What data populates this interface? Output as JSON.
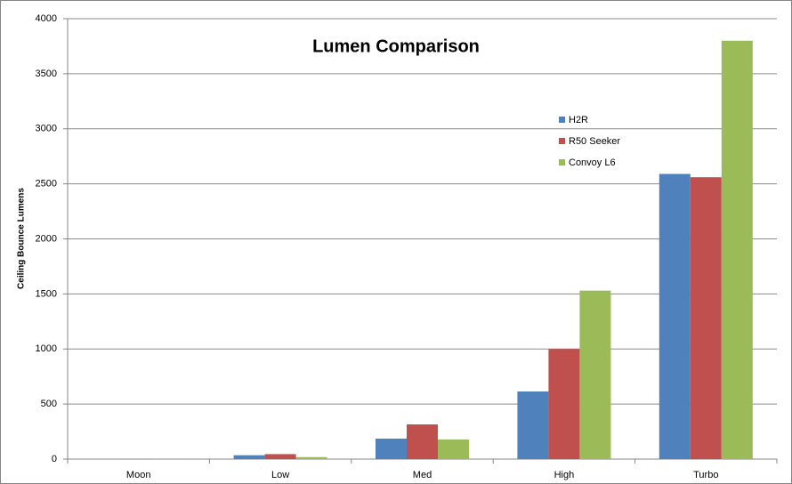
{
  "chart_data": {
    "type": "bar",
    "title": "Lumen Comparison",
    "y_label": "Ceiling Bounce Lumens",
    "categories": [
      "Moon",
      "Low",
      "Med",
      "High",
      "Turbo"
    ],
    "series": [
      {
        "name": "H2R",
        "color": "#4f81bd",
        "values": [
          1,
          35,
          186,
          614,
          2590
        ]
      },
      {
        "name": "R50 Seeker",
        "color": "#c0504d",
        "values": [
          1,
          45,
          315,
          1000,
          2560
        ]
      },
      {
        "name": "Convoy L6",
        "color": "#9bbb59",
        "values": [
          1,
          18,
          178,
          1530,
          3800
        ]
      }
    ],
    "ylim": [
      0,
      4000
    ],
    "yticks": [
      0,
      500,
      1000,
      1500,
      2000,
      2500,
      3000,
      3500,
      4000
    ],
    "grid": true,
    "legend": "right"
  }
}
